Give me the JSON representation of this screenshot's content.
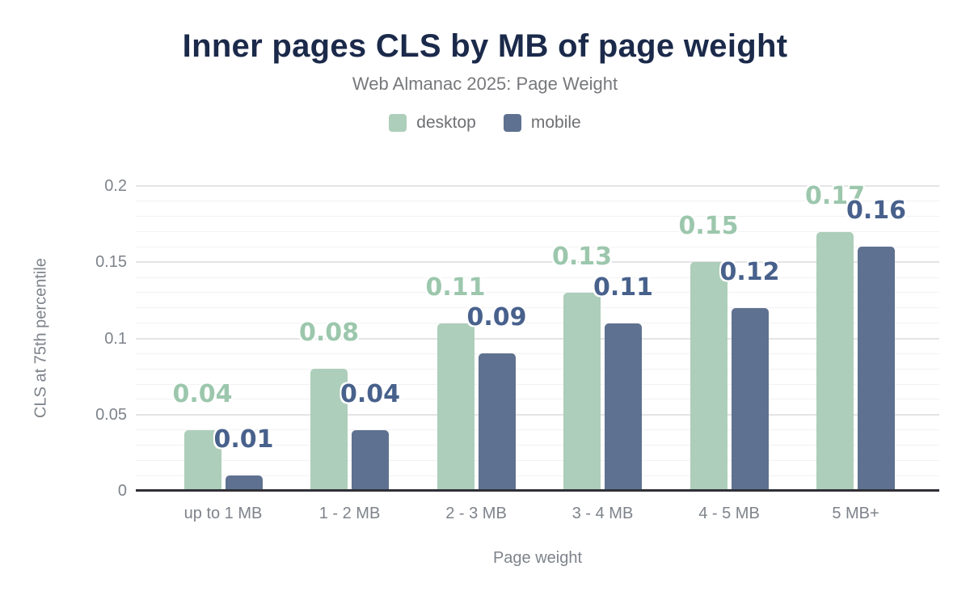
{
  "chart_data": {
    "type": "bar",
    "title": "Inner pages CLS by MB of page weight",
    "subtitle": "Web Almanac 2025: Page Weight",
    "categories": [
      "up to 1 MB",
      "1 - 2 MB",
      "2 - 3 MB",
      "3 - 4 MB",
      "4 - 5 MB",
      "5 MB+"
    ],
    "series": [
      {
        "name": "desktop",
        "values": [
          0.04,
          0.08,
          0.11,
          0.13,
          0.15,
          0.17
        ],
        "labels": [
          "0.04",
          "0.08",
          "0.11",
          "0.13",
          "0.15",
          "0.17"
        ],
        "color": "#adceba",
        "label_color": "#9cc7ad"
      },
      {
        "name": "mobile",
        "values": [
          0.01,
          0.04,
          0.09,
          0.11,
          0.12,
          0.16
        ],
        "labels": [
          "0.01",
          "0.04",
          "0.09",
          "0.11",
          "0.12",
          "0.16"
        ],
        "color": "#5f7190",
        "label_color": "#48618c"
      }
    ],
    "xlabel": "Page weight",
    "ylabel": "CLS at 75th percentile",
    "ylim": [
      0,
      0.2
    ],
    "yticks": [
      {
        "value": 0,
        "label": "0"
      },
      {
        "value": 0.05,
        "label": "0.05"
      },
      {
        "value": 0.1,
        "label": "0.1"
      },
      {
        "value": 0.15,
        "label": "0.15"
      },
      {
        "value": 0.2,
        "label": "0.2"
      }
    ],
    "minor_tick_step": 0.01,
    "grid": "on",
    "legend_position": "top"
  },
  "colors": {
    "background": "#ffffff",
    "title_text": "#1b2a4a",
    "subtitle_text": "#77787c",
    "legend_text": "#6f7074",
    "tick_text": "#7e838b",
    "axis_line": "#2f3037",
    "grid_major": "#e4e4e6",
    "grid_minor": "#f2f2f4",
    "halo": "#ffffff"
  }
}
